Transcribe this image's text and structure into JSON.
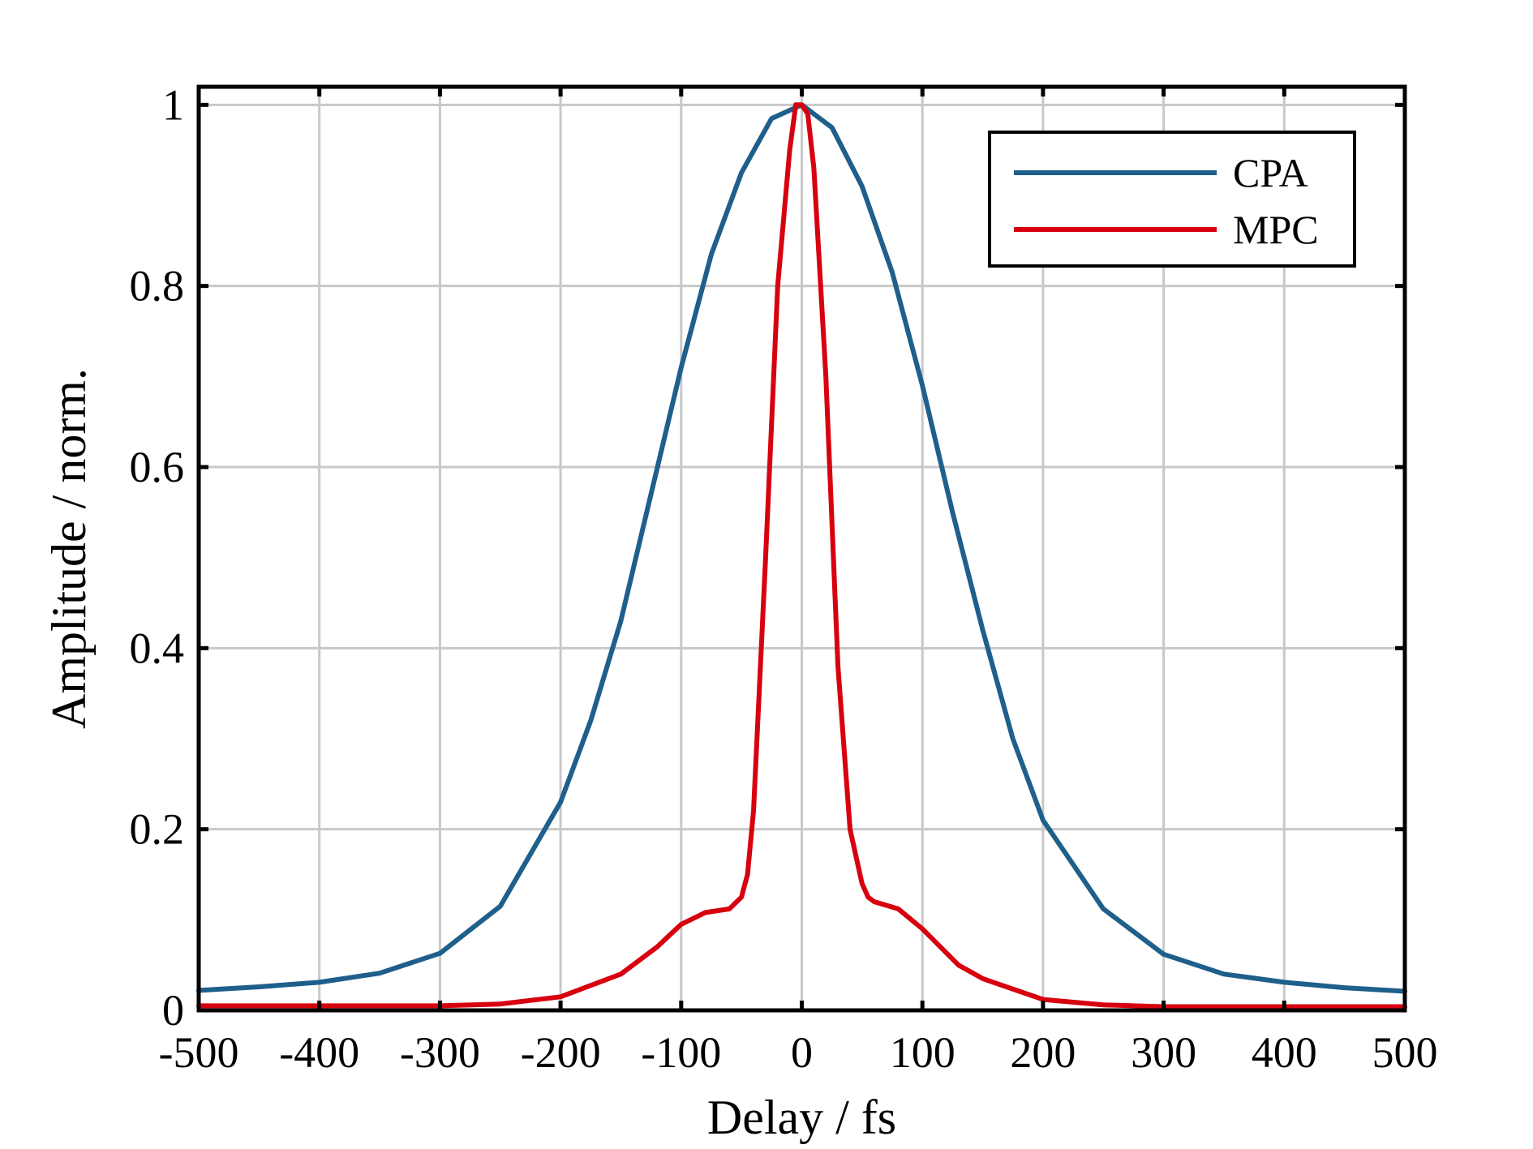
{
  "chart_data": {
    "type": "line",
    "title": "",
    "xlabel": "Delay / fs",
    "ylabel": "Amplitude / norm.",
    "xlim": [
      -500,
      500
    ],
    "ylim": [
      0,
      1.02
    ],
    "grid": true,
    "legend_position": "top-right",
    "x_ticks": [
      -500,
      -400,
      -300,
      -200,
      -100,
      0,
      100,
      200,
      300,
      400,
      500
    ],
    "x_tick_labels": [
      "-500",
      "-400",
      "-300",
      "-200",
      "-100",
      "0",
      "100",
      "200",
      "300",
      "400",
      "500"
    ],
    "y_ticks": [
      0,
      0.2,
      0.4,
      0.6,
      0.8,
      1
    ],
    "y_tick_labels": [
      "0",
      "0.2",
      "0.4",
      "0.6",
      "0.8",
      "1"
    ],
    "series": [
      {
        "name": "CPA",
        "color": "#1f5f8b",
        "x": [
          -500,
          -450,
          -400,
          -350,
          -300,
          -250,
          -200,
          -175,
          -150,
          -125,
          -100,
          -75,
          -50,
          -25,
          0,
          25,
          50,
          75,
          100,
          125,
          150,
          175,
          200,
          250,
          300,
          350,
          400,
          450,
          500
        ],
        "y": [
          0.022,
          0.026,
          0.031,
          0.041,
          0.063,
          0.115,
          0.23,
          0.32,
          0.43,
          0.57,
          0.71,
          0.835,
          0.925,
          0.985,
          1.0,
          0.975,
          0.91,
          0.815,
          0.69,
          0.55,
          0.42,
          0.3,
          0.21,
          0.112,
          0.062,
          0.04,
          0.031,
          0.025,
          0.021
        ]
      },
      {
        "name": "MPC",
        "color": "#d7000f",
        "x": [
          -500,
          -400,
          -300,
          -250,
          -200,
          -150,
          -120,
          -100,
          -80,
          -60,
          -50,
          -45,
          -40,
          -30,
          -20,
          -10,
          -5,
          0,
          5,
          10,
          20,
          30,
          40,
          50,
          55,
          60,
          80,
          100,
          130,
          150,
          200,
          250,
          300,
          400,
          500
        ],
        "y": [
          0.005,
          0.005,
          0.005,
          0.007,
          0.015,
          0.04,
          0.07,
          0.095,
          0.108,
          0.112,
          0.125,
          0.15,
          0.22,
          0.5,
          0.8,
          0.95,
          1.0,
          1.0,
          0.99,
          0.93,
          0.7,
          0.38,
          0.2,
          0.14,
          0.125,
          0.12,
          0.112,
          0.09,
          0.05,
          0.035,
          0.012,
          0.006,
          0.004,
          0.004,
          0.004
        ]
      }
    ]
  }
}
